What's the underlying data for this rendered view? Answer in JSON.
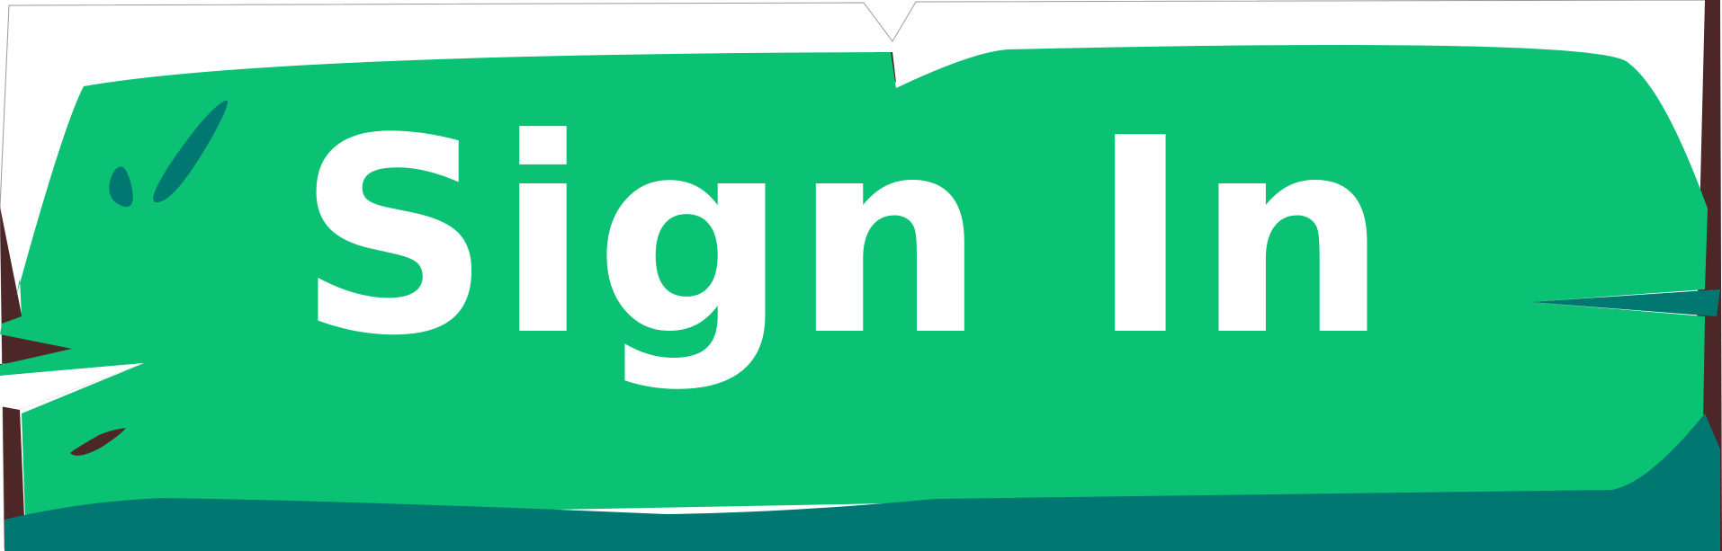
{
  "button": {
    "label": "Sign In"
  },
  "colors": {
    "green": "#0bc174",
    "teal": "#007771",
    "maroon": "#4d2727",
    "text": "#ffffff",
    "background": "#ffffff"
  }
}
